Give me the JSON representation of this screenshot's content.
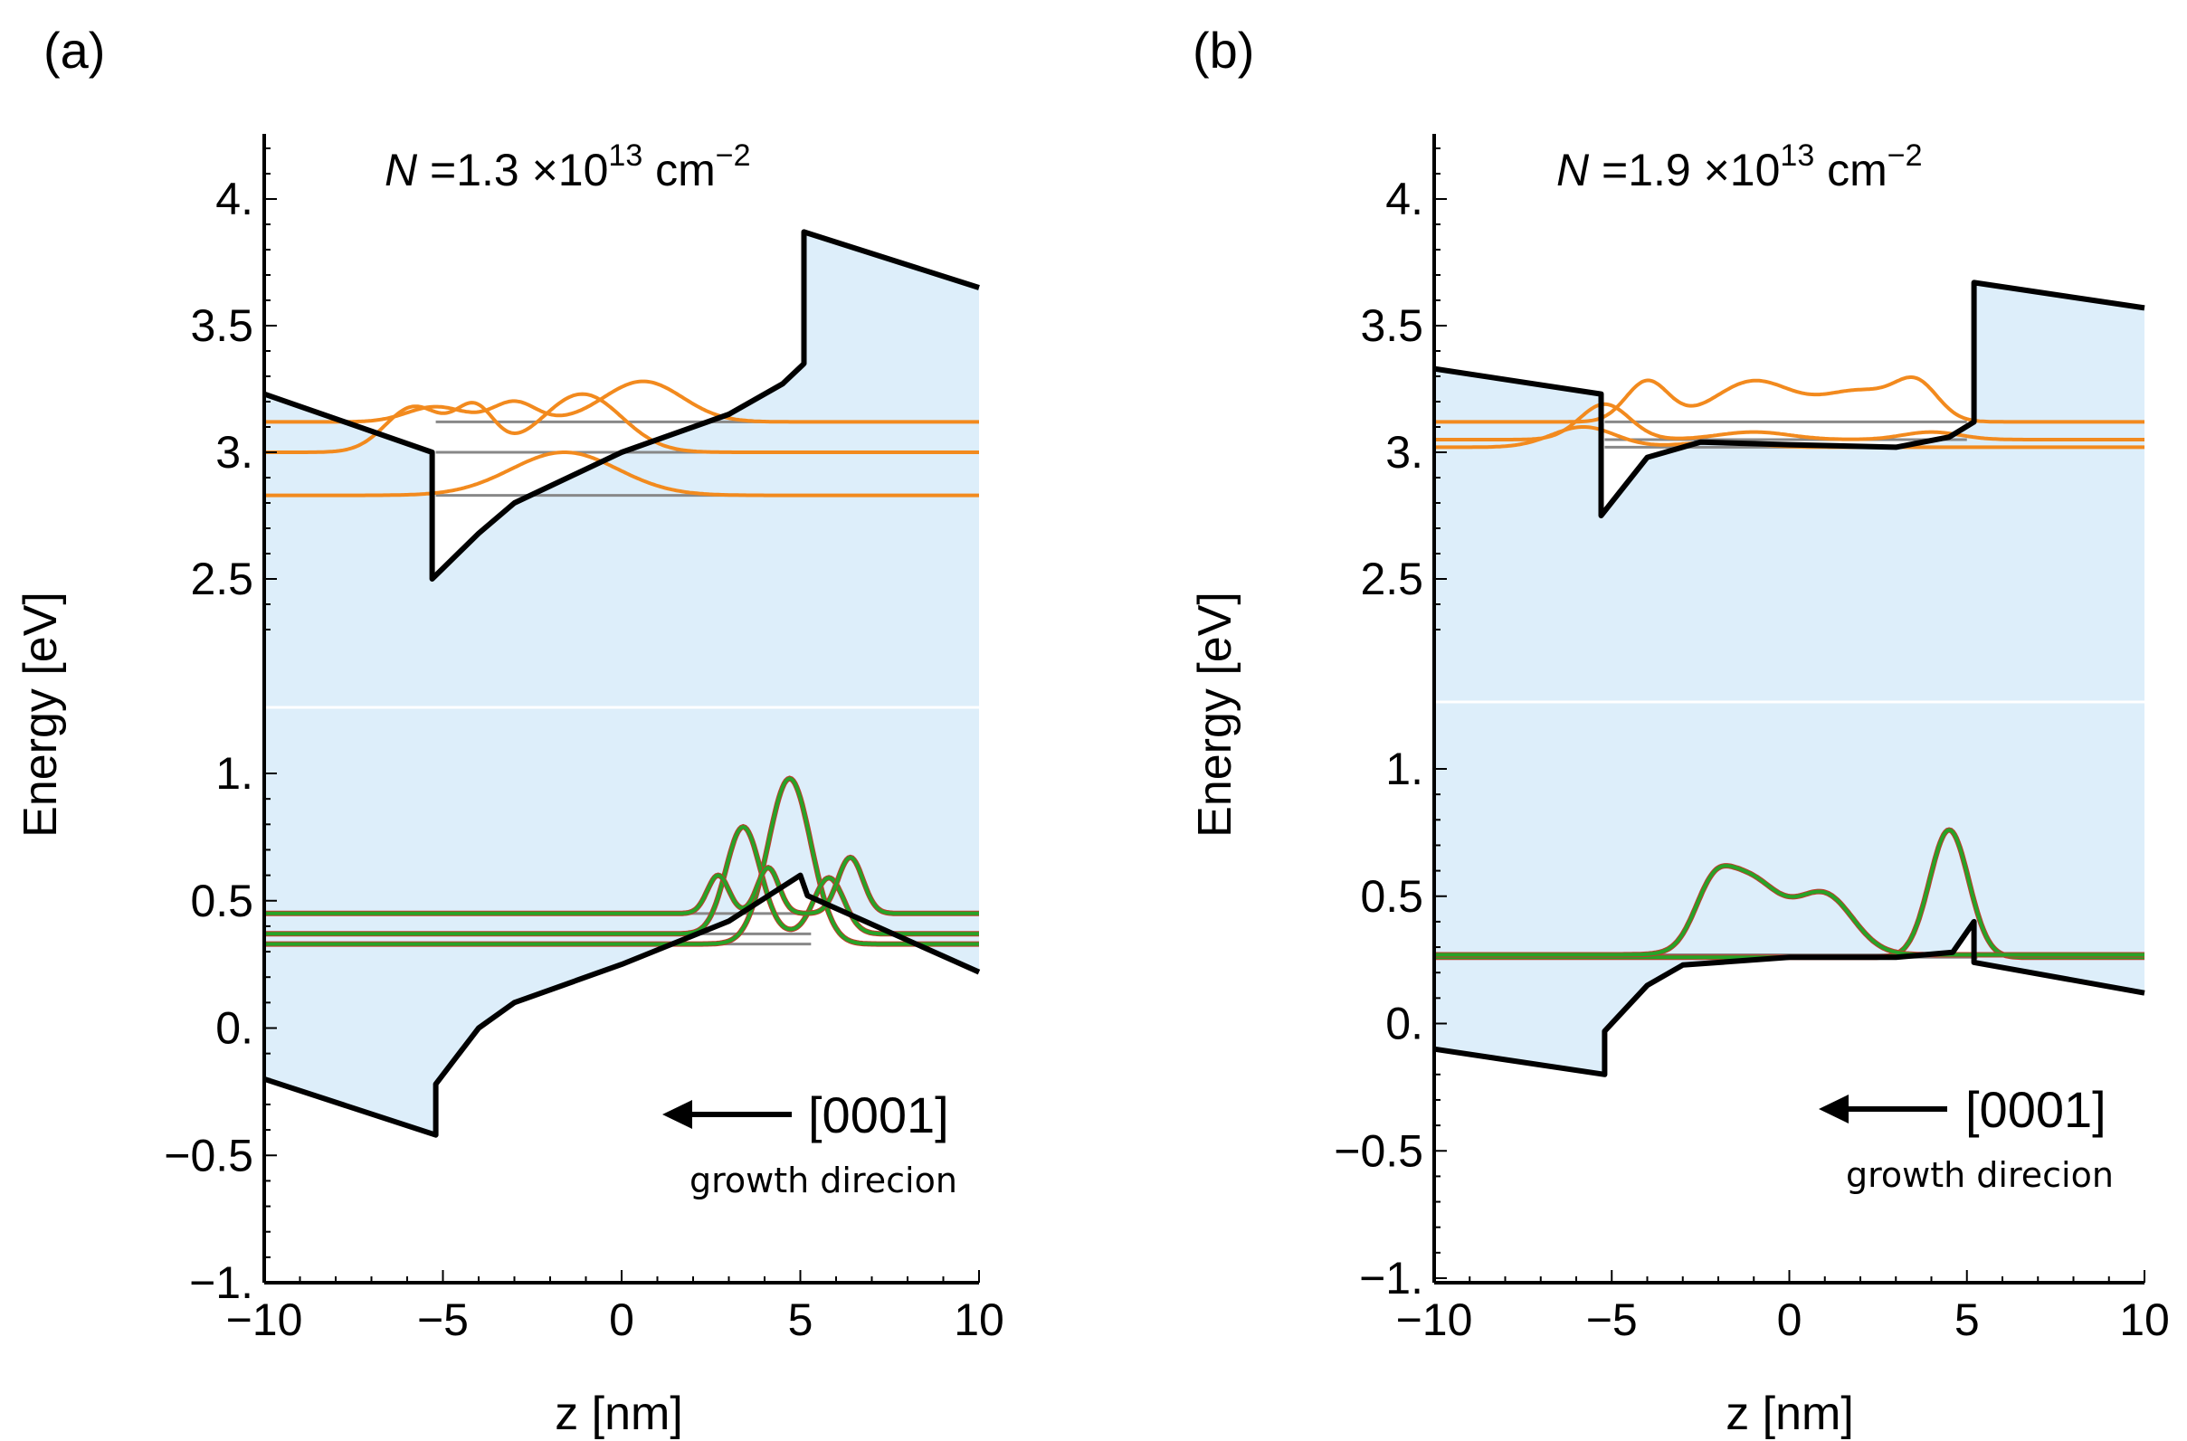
{
  "chart_data": [
    {
      "type": "line",
      "panel_label": "(a)",
      "title_pre": "N",
      "title_mid": " =1.3 ×10",
      "title_sup": "13",
      "title_post": " cm",
      "title_sup2": "−2",
      "xlabel": "z [nm]",
      "ylabel": "Energy [eV]",
      "xlim": [
        -10,
        10
      ],
      "ylim": [
        -1,
        4.3
      ],
      "y_break": [
        1.2,
        2.2
      ],
      "xticks": [
        "−10",
        "−5",
        "0",
        "5",
        "10"
      ],
      "yticks": [
        "−1.",
        "−0.5",
        "0.",
        "0.5",
        "1.",
        "2.5",
        "3.",
        "3.5",
        "4."
      ],
      "direction_label": "[0001]",
      "direction_sub": "growth direcion",
      "colors": {
        "band": "#000000",
        "fill": "#ddeefa",
        "electron": "#f28a1e",
        "hole": "#27a327",
        "hole_edge": "#c0392b",
        "level": "#888888"
      },
      "conduction_band": [
        [
          -10,
          3.23
        ],
        [
          -5.3,
          3.0
        ],
        [
          -5.3,
          2.5
        ],
        [
          -4.0,
          2.68
        ],
        [
          -3.0,
          2.8
        ],
        [
          0,
          3.0
        ],
        [
          3.0,
          3.15
        ],
        [
          4.5,
          3.27
        ],
        [
          5.1,
          3.35
        ],
        [
          5.1,
          3.87
        ],
        [
          10,
          3.65
        ]
      ],
      "valence_band": [
        [
          -10,
          -0.2
        ],
        [
          -5.2,
          -0.42
        ],
        [
          -5.2,
          -0.22
        ],
        [
          -4.0,
          0.0
        ],
        [
          -3.0,
          0.1
        ],
        [
          0,
          0.25
        ],
        [
          3.0,
          0.42
        ],
        [
          5.0,
          0.6
        ],
        [
          5.2,
          0.52
        ],
        [
          10,
          0.22
        ]
      ],
      "electron_levels": [
        2.83,
        3.0,
        3.12
      ],
      "hole_levels": [
        0.33,
        0.37,
        0.45
      ],
      "electron_wavefunctions": [
        {
          "level": 2.83,
          "peaks": [
            [
              -1.6,
              0.17,
              1.5
            ]
          ]
        },
        {
          "level": 3.0,
          "peaks": [
            [
              -5.8,
              0.18,
              0.8
            ],
            [
              -4.1,
              0.17,
              0.55
            ],
            [
              -1.1,
              0.23,
              1.1
            ]
          ]
        },
        {
          "level": 3.12,
          "peaks": [
            [
              -5.2,
              0.06,
              0.8
            ],
            [
              -3.0,
              0.08,
              0.6
            ],
            [
              0.6,
              0.16,
              1.1
            ]
          ]
        }
      ],
      "hole_wavefunctions": [
        {
          "level": 0.33,
          "peaks": [
            [
              4.7,
              0.65,
              0.6
            ]
          ]
        },
        {
          "level": 0.37,
          "peaks": [
            [
              3.4,
              0.42,
              0.48
            ],
            [
              5.8,
              0.22,
              0.42
            ]
          ]
        },
        {
          "level": 0.45,
          "peaks": [
            [
              2.7,
              0.15,
              0.3
            ],
            [
              4.1,
              0.18,
              0.3
            ],
            [
              6.4,
              0.22,
              0.35
            ]
          ]
        }
      ]
    },
    {
      "type": "line",
      "panel_label": "(b)",
      "title_pre": "N",
      "title_mid": " =1.9 ×10",
      "title_sup": "13",
      "title_post": " cm",
      "title_sup2": "−2",
      "xlabel": "z [nm]",
      "ylabel": "Energy [eV]",
      "xlim": [
        -10,
        10
      ],
      "ylim": [
        -1,
        4.3
      ],
      "y_break": [
        1.2,
        2.2
      ],
      "xticks": [
        "−10",
        "−5",
        "0",
        "5",
        "10"
      ],
      "yticks": [
        "−1.",
        "−0.5",
        "0.",
        "0.5",
        "1.",
        "2.5",
        "3.",
        "3.5",
        "4."
      ],
      "direction_label": "[0001]",
      "direction_sub": "growth direcion",
      "colors": {
        "band": "#000000",
        "fill": "#ddeefa",
        "electron": "#f28a1e",
        "hole": "#27a327",
        "hole_edge": "#c0392b",
        "level": "#888888"
      },
      "conduction_band": [
        [
          -10,
          3.33
        ],
        [
          -5.3,
          3.23
        ],
        [
          -5.3,
          2.75
        ],
        [
          -4.0,
          2.98
        ],
        [
          -2.5,
          3.04
        ],
        [
          0,
          3.03
        ],
        [
          3.0,
          3.02
        ],
        [
          4.5,
          3.06
        ],
        [
          5.2,
          3.12
        ],
        [
          5.2,
          3.67
        ],
        [
          10,
          3.57
        ]
      ],
      "valence_band": [
        [
          -10,
          -0.1
        ],
        [
          -5.2,
          -0.2
        ],
        [
          -5.2,
          -0.03
        ],
        [
          -4.0,
          0.15
        ],
        [
          -3.0,
          0.23
        ],
        [
          0,
          0.26
        ],
        [
          3.0,
          0.26
        ],
        [
          4.6,
          0.28
        ],
        [
          5.2,
          0.4
        ],
        [
          5.2,
          0.24
        ],
        [
          10,
          0.12
        ]
      ],
      "electron_levels": [
        3.02,
        3.05,
        3.12
      ],
      "hole_levels": [
        0.26,
        0.27
      ],
      "electron_wavefunctions": [
        {
          "level": 3.02,
          "peaks": [
            [
              -5.8,
              0.08,
              0.9
            ],
            [
              -2.0,
              0.02,
              1.0
            ]
          ]
        },
        {
          "level": 3.05,
          "peaks": [
            [
              -5.2,
              0.14,
              0.7
            ],
            [
              -1.0,
              0.03,
              1.0
            ],
            [
              4.0,
              0.03,
              0.8
            ]
          ]
        },
        {
          "level": 3.12,
          "peaks": [
            [
              -4.0,
              0.16,
              0.6
            ],
            [
              -1.0,
              0.16,
              1.1
            ],
            [
              2.0,
              0.12,
              1.1
            ],
            [
              3.6,
              0.13,
              0.6
            ]
          ]
        }
      ],
      "hole_wavefunctions": [
        {
          "level": 0.26,
          "peaks": [
            [
              4.5,
              0.5,
              0.55
            ]
          ]
        },
        {
          "level": 0.27,
          "peaks": [
            [
              -2.2,
              0.15,
              0.5
            ],
            [
              -1.2,
              0.3,
              0.9
            ],
            [
              1.0,
              0.23,
              0.8
            ]
          ]
        }
      ]
    }
  ]
}
